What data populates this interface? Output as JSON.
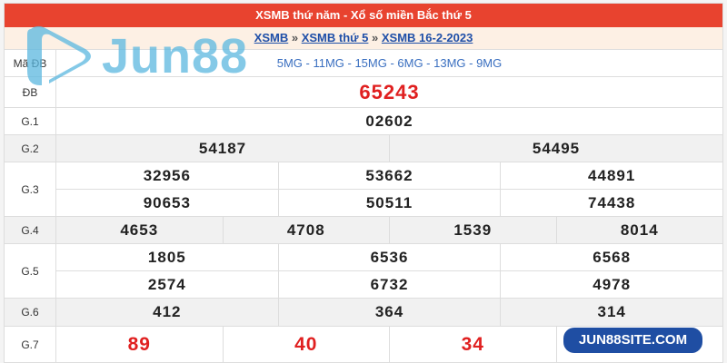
{
  "header": {
    "title": "XSMB thứ năm - Xổ số miền Bắc thứ 5"
  },
  "breadcrumb": {
    "items": [
      "XSMB",
      "XSMB thứ 5",
      "XSMB 16-2-2023"
    ],
    "sep": "»"
  },
  "watermark": {
    "text": "Jun88",
    "color": "#5bb8e0"
  },
  "site_badge": "JUN88SITE.COM",
  "rows": {
    "ma_db": {
      "label": "Mã ĐB",
      "value": "5MG - 11MG - 15MG - 6MG - 13MG - 9MG"
    },
    "db": {
      "label": "ĐB",
      "values": [
        "65243"
      ]
    },
    "g1": {
      "label": "G.1",
      "values": [
        "02602"
      ]
    },
    "g2": {
      "label": "G.2",
      "values": [
        "54187",
        "54495"
      ]
    },
    "g3": {
      "label": "G.3",
      "values": [
        [
          "32956",
          "53662",
          "44891"
        ],
        [
          "90653",
          "50511",
          "74438"
        ]
      ]
    },
    "g4": {
      "label": "G.4",
      "values": [
        "4653",
        "4708",
        "1539",
        "8014"
      ]
    },
    "g5": {
      "label": "G.5",
      "values": [
        [
          "1805",
          "6536",
          "6568"
        ],
        [
          "2574",
          "6732",
          "4978"
        ]
      ]
    },
    "g6": {
      "label": "G.6",
      "values": [
        "412",
        "364",
        "314"
      ]
    },
    "g7": {
      "label": "G.7",
      "values": [
        "89",
        "40",
        "34",
        ""
      ]
    }
  },
  "colors": {
    "header": "#e8432f",
    "special": "#e02020",
    "link": "#1f4fa8",
    "badge": "#1f4ea3"
  }
}
